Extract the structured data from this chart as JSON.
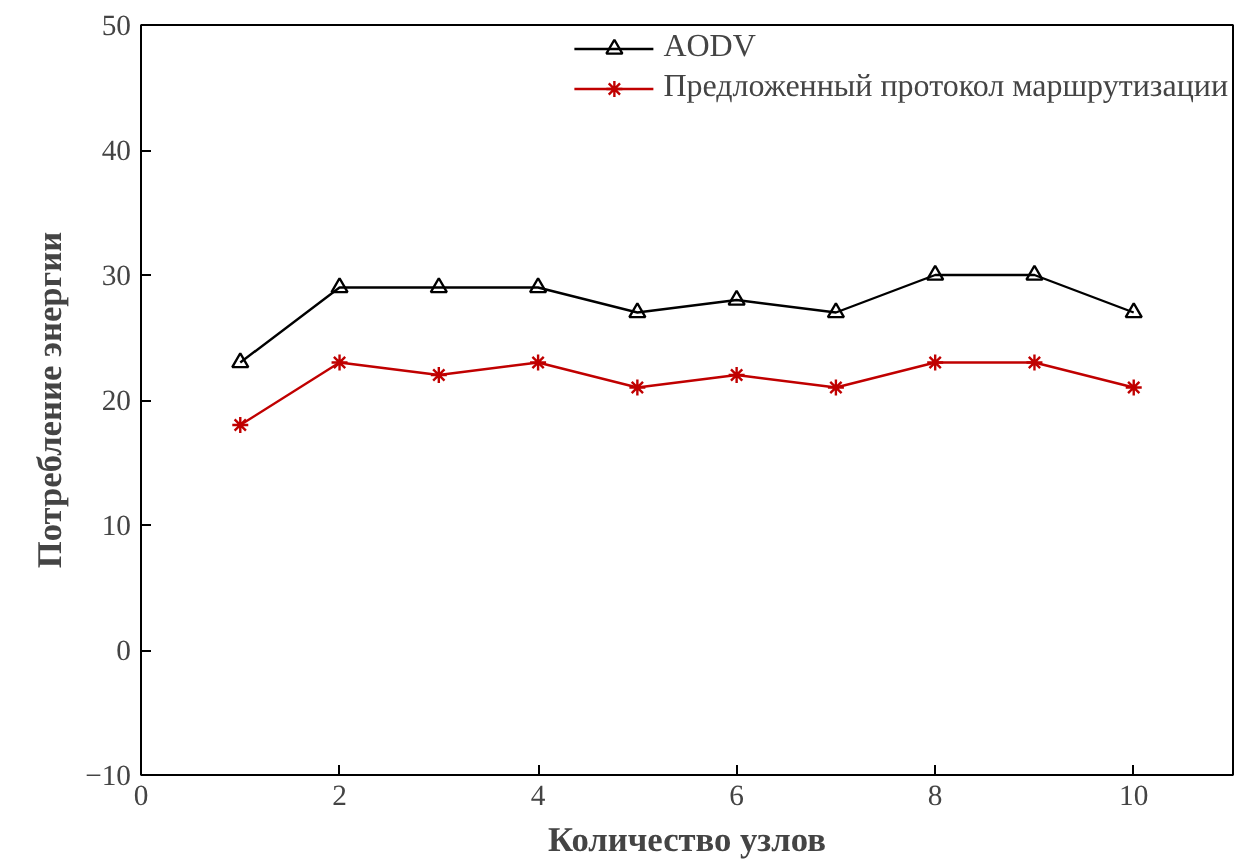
{
  "chart_data": {
    "type": "line",
    "xlabel": "Количество узлов",
    "ylabel": "Потребление энергии",
    "x": [
      1,
      2,
      3,
      4,
      5,
      6,
      7,
      8,
      9,
      10
    ],
    "series": [
      {
        "name": "AODV",
        "color": "#000000",
        "marker": "triangle",
        "values": [
          23,
          29,
          29,
          29,
          27,
          28,
          27,
          30,
          30,
          27
        ]
      },
      {
        "name": "Предложенный протокол маршрутизации",
        "color": "#c00000",
        "marker": "cross",
        "values": [
          18,
          23,
          22,
          23,
          21,
          22,
          21,
          23,
          23,
          21
        ]
      }
    ],
    "xlim": [
      0,
      11
    ],
    "xticks": [
      0,
      2,
      4,
      6,
      8,
      10
    ],
    "ylim": [
      -10,
      50
    ],
    "yticks": [
      -10,
      0,
      10,
      20,
      30,
      40,
      50
    ],
    "grid": false,
    "legend": "top right",
    "line_style": "solid"
  }
}
